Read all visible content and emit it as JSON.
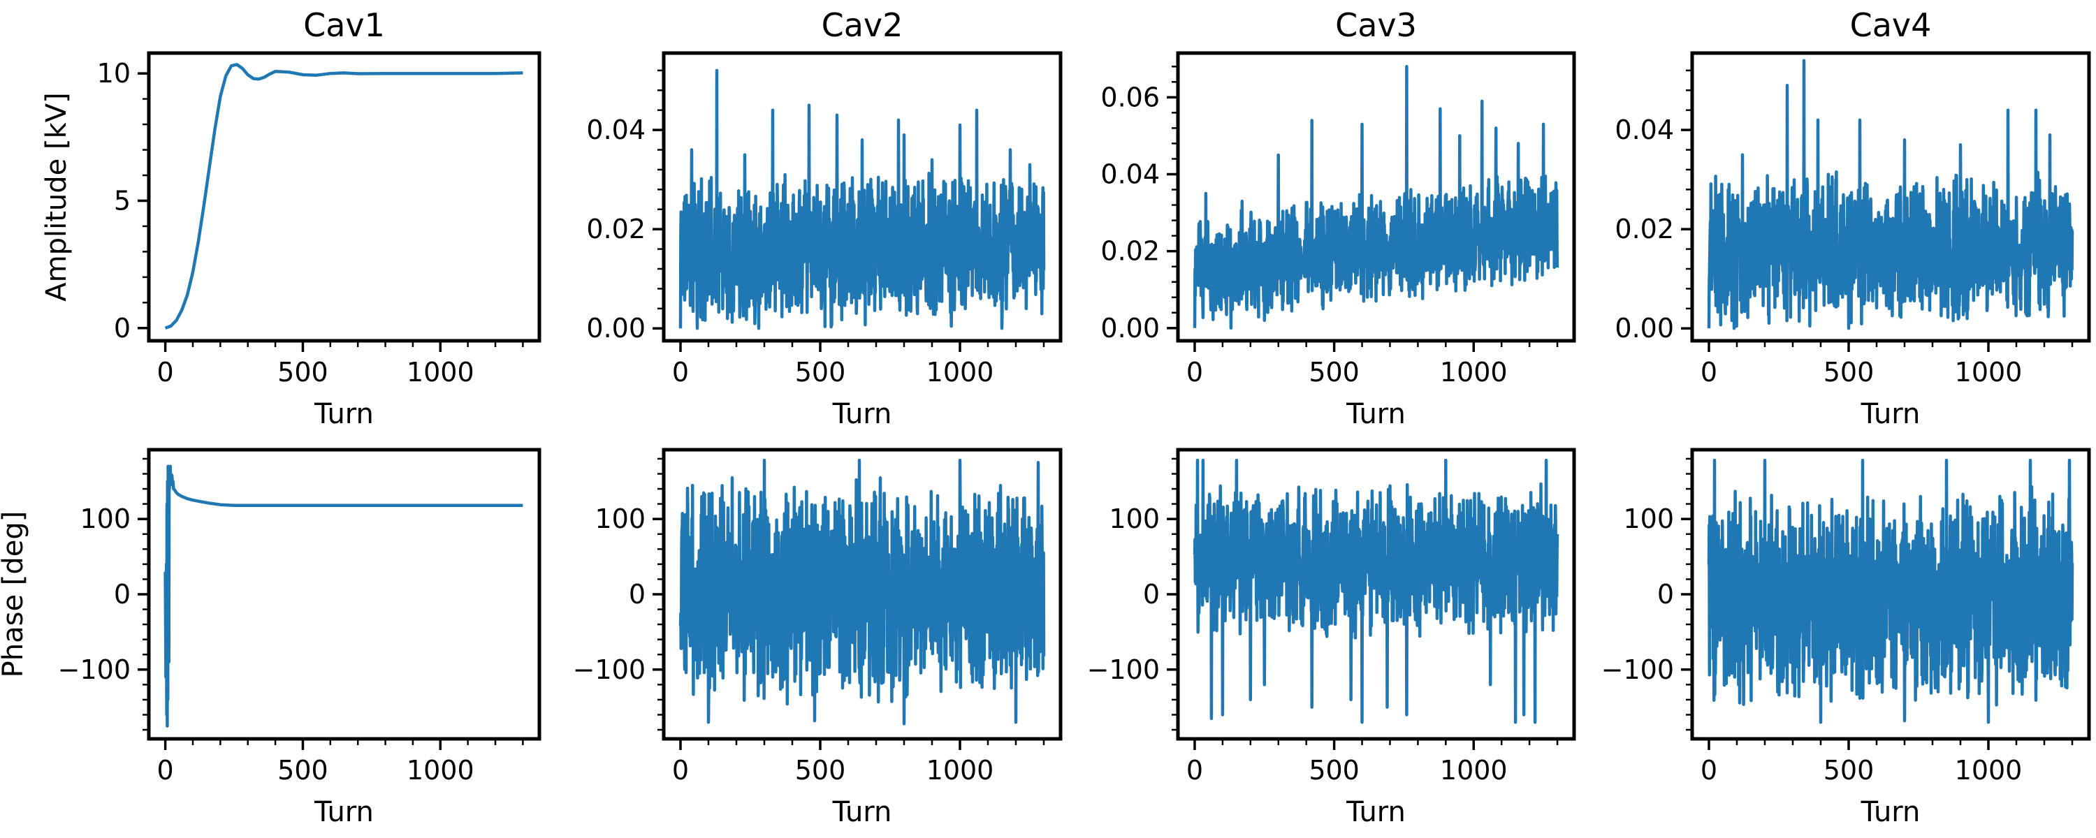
{
  "figure": {
    "line_color": "#1f77b4"
  },
  "chart_data": [
    {
      "type": "line",
      "id": "amp-cav1",
      "title": "Cav1",
      "xlabel": "Turn",
      "ylabel": "Amplitude [kV]",
      "xlim": [
        -60,
        1360
      ],
      "ylim": [
        -0.5,
        10.8
      ],
      "xticks": [
        0,
        500,
        1000
      ],
      "xtick_labels": [
        "0",
        "500",
        "1000"
      ],
      "yticks": [
        0,
        5,
        10
      ],
      "ytick_labels": [
        "0",
        "5",
        "10"
      ],
      "series": [
        {
          "color": "#1f77b4",
          "x": [
            0,
            20,
            40,
            60,
            80,
            100,
            120,
            140,
            160,
            180,
            200,
            220,
            240,
            260,
            280,
            300,
            320,
            340,
            360,
            380,
            400,
            450,
            500,
            550,
            600,
            650,
            700,
            800,
            900,
            1000,
            1100,
            1200,
            1300
          ],
          "y": [
            0.0,
            0.08,
            0.3,
            0.7,
            1.3,
            2.2,
            3.4,
            4.8,
            6.3,
            7.8,
            9.1,
            9.9,
            10.3,
            10.35,
            10.2,
            9.95,
            9.8,
            9.78,
            9.85,
            9.98,
            10.08,
            10.05,
            9.95,
            9.93,
            10.0,
            10.02,
            9.99,
            10.0,
            10.0,
            10.0,
            10.0,
            10.0,
            10.02
          ]
        }
      ]
    },
    {
      "type": "line",
      "id": "amp-cav2",
      "title": "Cav2",
      "xlabel": "Turn",
      "ylabel": "",
      "xlim": [
        -60,
        1360
      ],
      "ylim": [
        -0.0025,
        0.0555
      ],
      "xticks": [
        0,
        500,
        1000
      ],
      "xtick_labels": [
        "0",
        "500",
        "1000"
      ],
      "yticks": [
        0,
        0.02,
        0.04
      ],
      "ytick_labels": [
        "0.00",
        "0.02",
        "0.04"
      ],
      "series": [
        {
          "color": "#1f77b4",
          "noise": {
            "seed": 11,
            "n": 1300,
            "x_max": 1300,
            "range_min": 0.0,
            "range_max": 0.032,
            "drift_start": 0,
            "drift_end": 0,
            "spikes": [
              [
                130,
                0.052
              ],
              [
                40,
                0.036
              ],
              [
                330,
                0.044
              ],
              [
                460,
                0.045
              ],
              [
                560,
                0.043
              ],
              [
                650,
                0.038
              ],
              [
                780,
                0.042
              ],
              [
                800,
                0.039
              ],
              [
                1000,
                0.041
              ],
              [
                1060,
                0.044
              ],
              [
                1180,
                0.036
              ],
              [
                230,
                0.035
              ],
              [
                900,
                0.034
              ],
              [
                1250,
                0.033
              ],
              [
                0,
                0.0
              ],
              [
                60,
                0.0
              ],
              [
                280,
                0.0
              ],
              [
                1150,
                0.0
              ]
            ]
          }
        }
      ]
    },
    {
      "type": "line",
      "id": "amp-cav3",
      "title": "Cav3",
      "xlabel": "Turn",
      "ylabel": "",
      "xlim": [
        -60,
        1360
      ],
      "ylim": [
        -0.0033,
        0.0715
      ],
      "xticks": [
        0,
        500,
        1000
      ],
      "xtick_labels": [
        "0",
        "500",
        "1000"
      ],
      "yticks": [
        0,
        0.02,
        0.04,
        0.06
      ],
      "ytick_labels": [
        "0.00",
        "0.02",
        "0.04",
        "0.06"
      ],
      "series": [
        {
          "color": "#1f77b4",
          "noise": {
            "seed": 23,
            "n": 1300,
            "x_max": 1300,
            "range_min": 0.0,
            "range_max": 0.03,
            "drift_start": 0.0,
            "drift_end": 0.012,
            "spikes": [
              [
                40,
                0.035
              ],
              [
                170,
                0.033
              ],
              [
                420,
                0.054
              ],
              [
                600,
                0.053
              ],
              [
                760,
                0.068
              ],
              [
                880,
                0.057
              ],
              [
                950,
                0.05
              ],
              [
                1030,
                0.059
              ],
              [
                1080,
                0.052
              ],
              [
                1160,
                0.048
              ],
              [
                1250,
                0.053
              ],
              [
                300,
                0.045
              ],
              [
                0,
                0.0
              ],
              [
                130,
                0.0
              ],
              [
                250,
                0.002
              ]
            ]
          }
        }
      ]
    },
    {
      "type": "line",
      "id": "amp-cav4",
      "title": "Cav4",
      "xlabel": "Turn",
      "ylabel": "",
      "xlim": [
        -60,
        1360
      ],
      "ylim": [
        -0.0025,
        0.0555
      ],
      "xticks": [
        0,
        500,
        1000
      ],
      "xtick_labels": [
        "0",
        "500",
        "1000"
      ],
      "yticks": [
        0,
        0.02,
        0.04
      ],
      "ytick_labels": [
        "0.00",
        "0.02",
        "0.04"
      ],
      "series": [
        {
          "color": "#1f77b4",
          "noise": {
            "seed": 37,
            "n": 1300,
            "x_max": 1300,
            "range_min": 0.0,
            "range_max": 0.032,
            "drift_start": 0,
            "drift_end": 0,
            "spikes": [
              [
                280,
                0.049
              ],
              [
                340,
                0.054
              ],
              [
                390,
                0.042
              ],
              [
                540,
                0.042
              ],
              [
                1070,
                0.044
              ],
              [
                1170,
                0.044
              ],
              [
                1220,
                0.039
              ],
              [
                700,
                0.038
              ],
              [
                900,
                0.037
              ],
              [
                120,
                0.035
              ],
              [
                0,
                0.0
              ],
              [
                90,
                0.0
              ],
              [
                500,
                0.0
              ]
            ]
          }
        }
      ]
    },
    {
      "type": "line",
      "id": "phase-cav1",
      "title": "",
      "xlabel": "Turn",
      "ylabel": "Phase [deg]",
      "xlim": [
        -60,
        1360
      ],
      "ylim": [
        -192,
        192
      ],
      "xticks": [
        0,
        500,
        1000
      ],
      "xtick_labels": [
        "0",
        "500",
        "1000"
      ],
      "yticks": [
        -100,
        0,
        100
      ],
      "ytick_labels": [
        "−100",
        "0",
        "100"
      ],
      "series": [
        {
          "color": "#1f77b4",
          "x": [
            0,
            2,
            4,
            5,
            6,
            7,
            8,
            9,
            10,
            11,
            12,
            13,
            14,
            15,
            16,
            17,
            18,
            19,
            20,
            22,
            24,
            26,
            28,
            30,
            35,
            40,
            50,
            60,
            80,
            100,
            130,
            160,
            200,
            250,
            300,
            400,
            500,
            700,
            900,
            1100,
            1300
          ],
          "y": [
            30,
            -110,
            40,
            -160,
            120,
            -175,
            150,
            -140,
            170,
            50,
            130,
            -90,
            160,
            140,
            165,
            150,
            170,
            155,
            160,
            150,
            158,
            145,
            150,
            140,
            138,
            135,
            132,
            130,
            127,
            125,
            123,
            121,
            119,
            118,
            118,
            118,
            118,
            118,
            118,
            118,
            118
          ]
        }
      ]
    },
    {
      "type": "line",
      "id": "phase-cav2",
      "title": "",
      "xlabel": "Turn",
      "ylabel": "",
      "xlim": [
        -60,
        1360
      ],
      "ylim": [
        -192,
        192
      ],
      "xticks": [
        0,
        500,
        1000
      ],
      "xtick_labels": [
        "0",
        "500",
        "1000"
      ],
      "yticks": [
        -100,
        0,
        100
      ],
      "ytick_labels": [
        "−100",
        "0",
        "100"
      ],
      "series": [
        {
          "color": "#1f77b4",
          "noise": {
            "seed": 53,
            "n": 1300,
            "x_max": 1300,
            "range_min": -150,
            "range_max": 160,
            "drift_start": 0,
            "drift_end": 0,
            "spikes": [
              [
                100,
                -170
              ],
              [
                300,
                178
              ],
              [
                480,
                -168
              ],
              [
                640,
                178
              ],
              [
                800,
                -172
              ],
              [
                1000,
                178
              ],
              [
                1200,
                -170
              ],
              [
                1280,
                175
              ]
            ]
          }
        }
      ]
    },
    {
      "type": "line",
      "id": "phase-cav3",
      "title": "",
      "xlabel": "Turn",
      "ylabel": "",
      "xlim": [
        -60,
        1360
      ],
      "ylim": [
        -192,
        192
      ],
      "xticks": [
        0,
        500,
        1000
      ],
      "xtick_labels": [
        "0",
        "500",
        "1000"
      ],
      "yticks": [
        -100,
        0,
        100
      ],
      "ytick_labels": [
        "−100",
        "0",
        "100"
      ],
      "series": [
        {
          "color": "#1f77b4",
          "noise": {
            "seed": 71,
            "n": 1300,
            "x_max": 1300,
            "range_min": -60,
            "range_max": 150,
            "drift_start": 0,
            "drift_end": 0,
            "spikes": [
              [
                10,
                178
              ],
              [
                30,
                178
              ],
              [
                60,
                -165
              ],
              [
                100,
                -160
              ],
              [
                150,
                178
              ],
              [
                200,
                -140
              ],
              [
                250,
                -120
              ],
              [
                420,
                -150
              ],
              [
                560,
                -140
              ],
              [
                600,
                -170
              ],
              [
                690,
                -150
              ],
              [
                760,
                -160
              ],
              [
                900,
                178
              ],
              [
                1060,
                -120
              ],
              [
                1150,
                -170
              ],
              [
                1180,
                -160
              ],
              [
                1220,
                -170
              ],
              [
                1260,
                178
              ],
              [
                1300,
                80
              ]
            ]
          }
        }
      ]
    },
    {
      "type": "line",
      "id": "phase-cav4",
      "title": "",
      "xlabel": "Turn",
      "ylabel": "",
      "xlim": [
        -60,
        1360
      ],
      "ylim": [
        -192,
        192
      ],
      "xticks": [
        0,
        500,
        1000
      ],
      "xtick_labels": [
        "0",
        "500",
        "1000"
      ],
      "yticks": [
        -100,
        0,
        100
      ],
      "ytick_labels": [
        "−100",
        "0",
        "100"
      ],
      "series": [
        {
          "color": "#1f77b4",
          "noise": {
            "seed": 89,
            "n": 1300,
            "x_max": 1300,
            "range_min": -155,
            "range_max": 145,
            "drift_start": 0,
            "drift_end": 0,
            "spikes": [
              [
                20,
                178
              ],
              [
                200,
                178
              ],
              [
                400,
                -170
              ],
              [
                550,
                178
              ],
              [
                700,
                -168
              ],
              [
                850,
                178
              ],
              [
                1000,
                -170
              ],
              [
                1150,
                178
              ],
              [
                1290,
                178
              ]
            ]
          }
        }
      ]
    }
  ]
}
